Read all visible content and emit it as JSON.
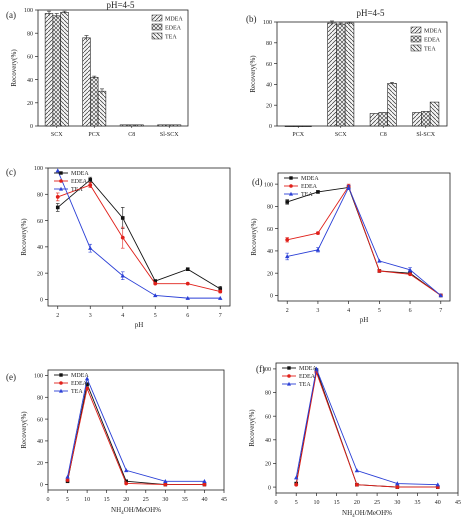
{
  "colors": {
    "axis": "#222222",
    "mdea": "#111111",
    "edea": "#e0201a",
    "tea": "#2a3fd6",
    "bar_fill": "#f2f2f2"
  },
  "chart_data": [
    {
      "panel": "(a)",
      "type": "bar",
      "title": "pH=4-5",
      "xlabel": "",
      "ylabel": "Recovery(%)",
      "ylim": [
        0,
        100
      ],
      "yticks": [
        0,
        20,
        40,
        60,
        80,
        100
      ],
      "categories": [
        "SCX",
        "PCX",
        "C8",
        "Sl-SCX"
      ],
      "series": [
        {
          "name": "MDEA",
          "values": [
            97,
            76,
            1,
            1
          ],
          "errors": [
            2,
            2,
            0,
            0
          ]
        },
        {
          "name": "EDEA",
          "values": [
            95,
            42,
            1,
            1
          ],
          "errors": [
            2,
            1,
            0,
            0
          ]
        },
        {
          "name": "TEA",
          "values": [
            98,
            30,
            1,
            1
          ],
          "errors": [
            1,
            2,
            0,
            0
          ]
        }
      ],
      "legend": "top-right"
    },
    {
      "panel": "(b)",
      "type": "bar",
      "title": "pH=4-5",
      "xlabel": "",
      "ylabel": "Recovery(%)",
      "ylim": [
        0,
        100
      ],
      "yticks": [
        0,
        20,
        40,
        60,
        80,
        100
      ],
      "categories": [
        "PCX",
        "SCX",
        "C8",
        "Sl-SCX"
      ],
      "series": [
        {
          "name": "MDEA",
          "values": [
            0,
            99,
            12,
            13
          ],
          "errors": [
            0,
            2,
            0,
            0
          ]
        },
        {
          "name": "EDEA",
          "values": [
            0,
            98,
            13,
            14
          ],
          "errors": [
            0,
            1,
            0,
            0
          ]
        },
        {
          "name": "TEA",
          "values": [
            0,
            99,
            41,
            23
          ],
          "errors": [
            0,
            1,
            1,
            0
          ]
        }
      ],
      "legend": "top-right"
    },
    {
      "panel": "(c)",
      "type": "line",
      "xlabel": "pH",
      "ylabel": "Recovery(%)",
      "xlim": [
        1.7,
        7.3
      ],
      "ylim": [
        -5,
        100
      ],
      "xticks": [
        2,
        3,
        4,
        5,
        6,
        7
      ],
      "yticks": [
        0,
        20,
        40,
        60,
        80,
        100
      ],
      "series": [
        {
          "name": "MDEA",
          "x": [
            2,
            3,
            4,
            5,
            6,
            7
          ],
          "values": [
            70,
            91,
            62,
            14,
            23,
            8
          ],
          "errors": [
            3,
            2,
            8,
            0,
            0,
            2
          ]
        },
        {
          "name": "EDEA",
          "x": [
            2,
            3,
            4,
            5,
            6,
            7
          ],
          "values": [
            78,
            87,
            47,
            12,
            12,
            6
          ],
          "errors": [
            3,
            2,
            8,
            0,
            0,
            1
          ]
        },
        {
          "name": "TEA",
          "x": [
            2,
            3,
            4,
            5,
            6,
            7
          ],
          "values": [
            98,
            39,
            18,
            3,
            1,
            1
          ],
          "errors": [
            0,
            3,
            3,
            0,
            0,
            0
          ]
        }
      ],
      "legend": "top-left"
    },
    {
      "panel": "(d)",
      "type": "line",
      "xlabel": "pH",
      "ylabel": "Recovery(%)",
      "xlim": [
        1.7,
        7.3
      ],
      "ylim": [
        -5,
        110
      ],
      "xticks": [
        2,
        3,
        4,
        5,
        6,
        7
      ],
      "yticks": [
        0,
        20,
        40,
        60,
        80,
        100
      ],
      "series": [
        {
          "name": "MDEA",
          "x": [
            2,
            3,
            4,
            5,
            6,
            7
          ],
          "values": [
            84,
            93,
            97,
            22,
            20,
            0
          ],
          "errors": [
            2,
            1,
            2,
            0,
            0,
            0
          ]
        },
        {
          "name": "EDEA",
          "x": [
            2,
            3,
            4,
            5,
            6,
            7
          ],
          "values": [
            50,
            56,
            98,
            22,
            19,
            0
          ],
          "errors": [
            2,
            1,
            2,
            0,
            0,
            0
          ]
        },
        {
          "name": "TEA",
          "x": [
            2,
            3,
            4,
            5,
            6,
            7
          ],
          "values": [
            35,
            41,
            97,
            31,
            23,
            0
          ],
          "errors": [
            3,
            2,
            2,
            0,
            2,
            0
          ]
        }
      ],
      "legend": "top-left"
    },
    {
      "panel": "(e)",
      "type": "line",
      "xlabel": "NH4OH/MeOH%",
      "ylabel": "Recovery(%)",
      "xlim": [
        0,
        45
      ],
      "ylim": [
        -5,
        105
      ],
      "xticks": [
        0,
        5,
        10,
        15,
        20,
        25,
        30,
        35,
        40,
        45
      ],
      "yticks": [
        0,
        20,
        40,
        60,
        80,
        100
      ],
      "series": [
        {
          "name": "MDEA",
          "x": [
            5,
            10,
            20,
            30,
            40
          ],
          "values": [
            3,
            92,
            3,
            0,
            0
          ]
        },
        {
          "name": "EDEA",
          "x": [
            5,
            10,
            20,
            30,
            40
          ],
          "values": [
            4,
            88,
            1,
            0,
            0
          ]
        },
        {
          "name": "TEA",
          "x": [
            5,
            10,
            20,
            30,
            40
          ],
          "values": [
            7,
            97,
            13,
            3,
            3
          ]
        }
      ],
      "legend": "top-left"
    },
    {
      "panel": "(f)",
      "type": "line",
      "xlabel": "NH4OH/MeOH%",
      "ylabel": "Recovery(%)",
      "xlim": [
        0,
        45
      ],
      "ylim": [
        -5,
        105
      ],
      "xticks": [
        0,
        5,
        10,
        15,
        20,
        25,
        30,
        35,
        40,
        45
      ],
      "yticks": [
        0,
        20,
        40,
        60,
        80,
        100
      ],
      "series": [
        {
          "name": "MDEA",
          "x": [
            5,
            10,
            20,
            30,
            40
          ],
          "values": [
            3,
            99,
            2,
            0,
            0
          ]
        },
        {
          "name": "EDEA",
          "x": [
            5,
            10,
            20,
            30,
            40
          ],
          "values": [
            2,
            97,
            2,
            0,
            0
          ]
        },
        {
          "name": "TEA",
          "x": [
            5,
            10,
            20,
            30,
            40
          ],
          "values": [
            8,
            100,
            14,
            3,
            2
          ]
        }
      ],
      "legend": "top-left"
    }
  ]
}
